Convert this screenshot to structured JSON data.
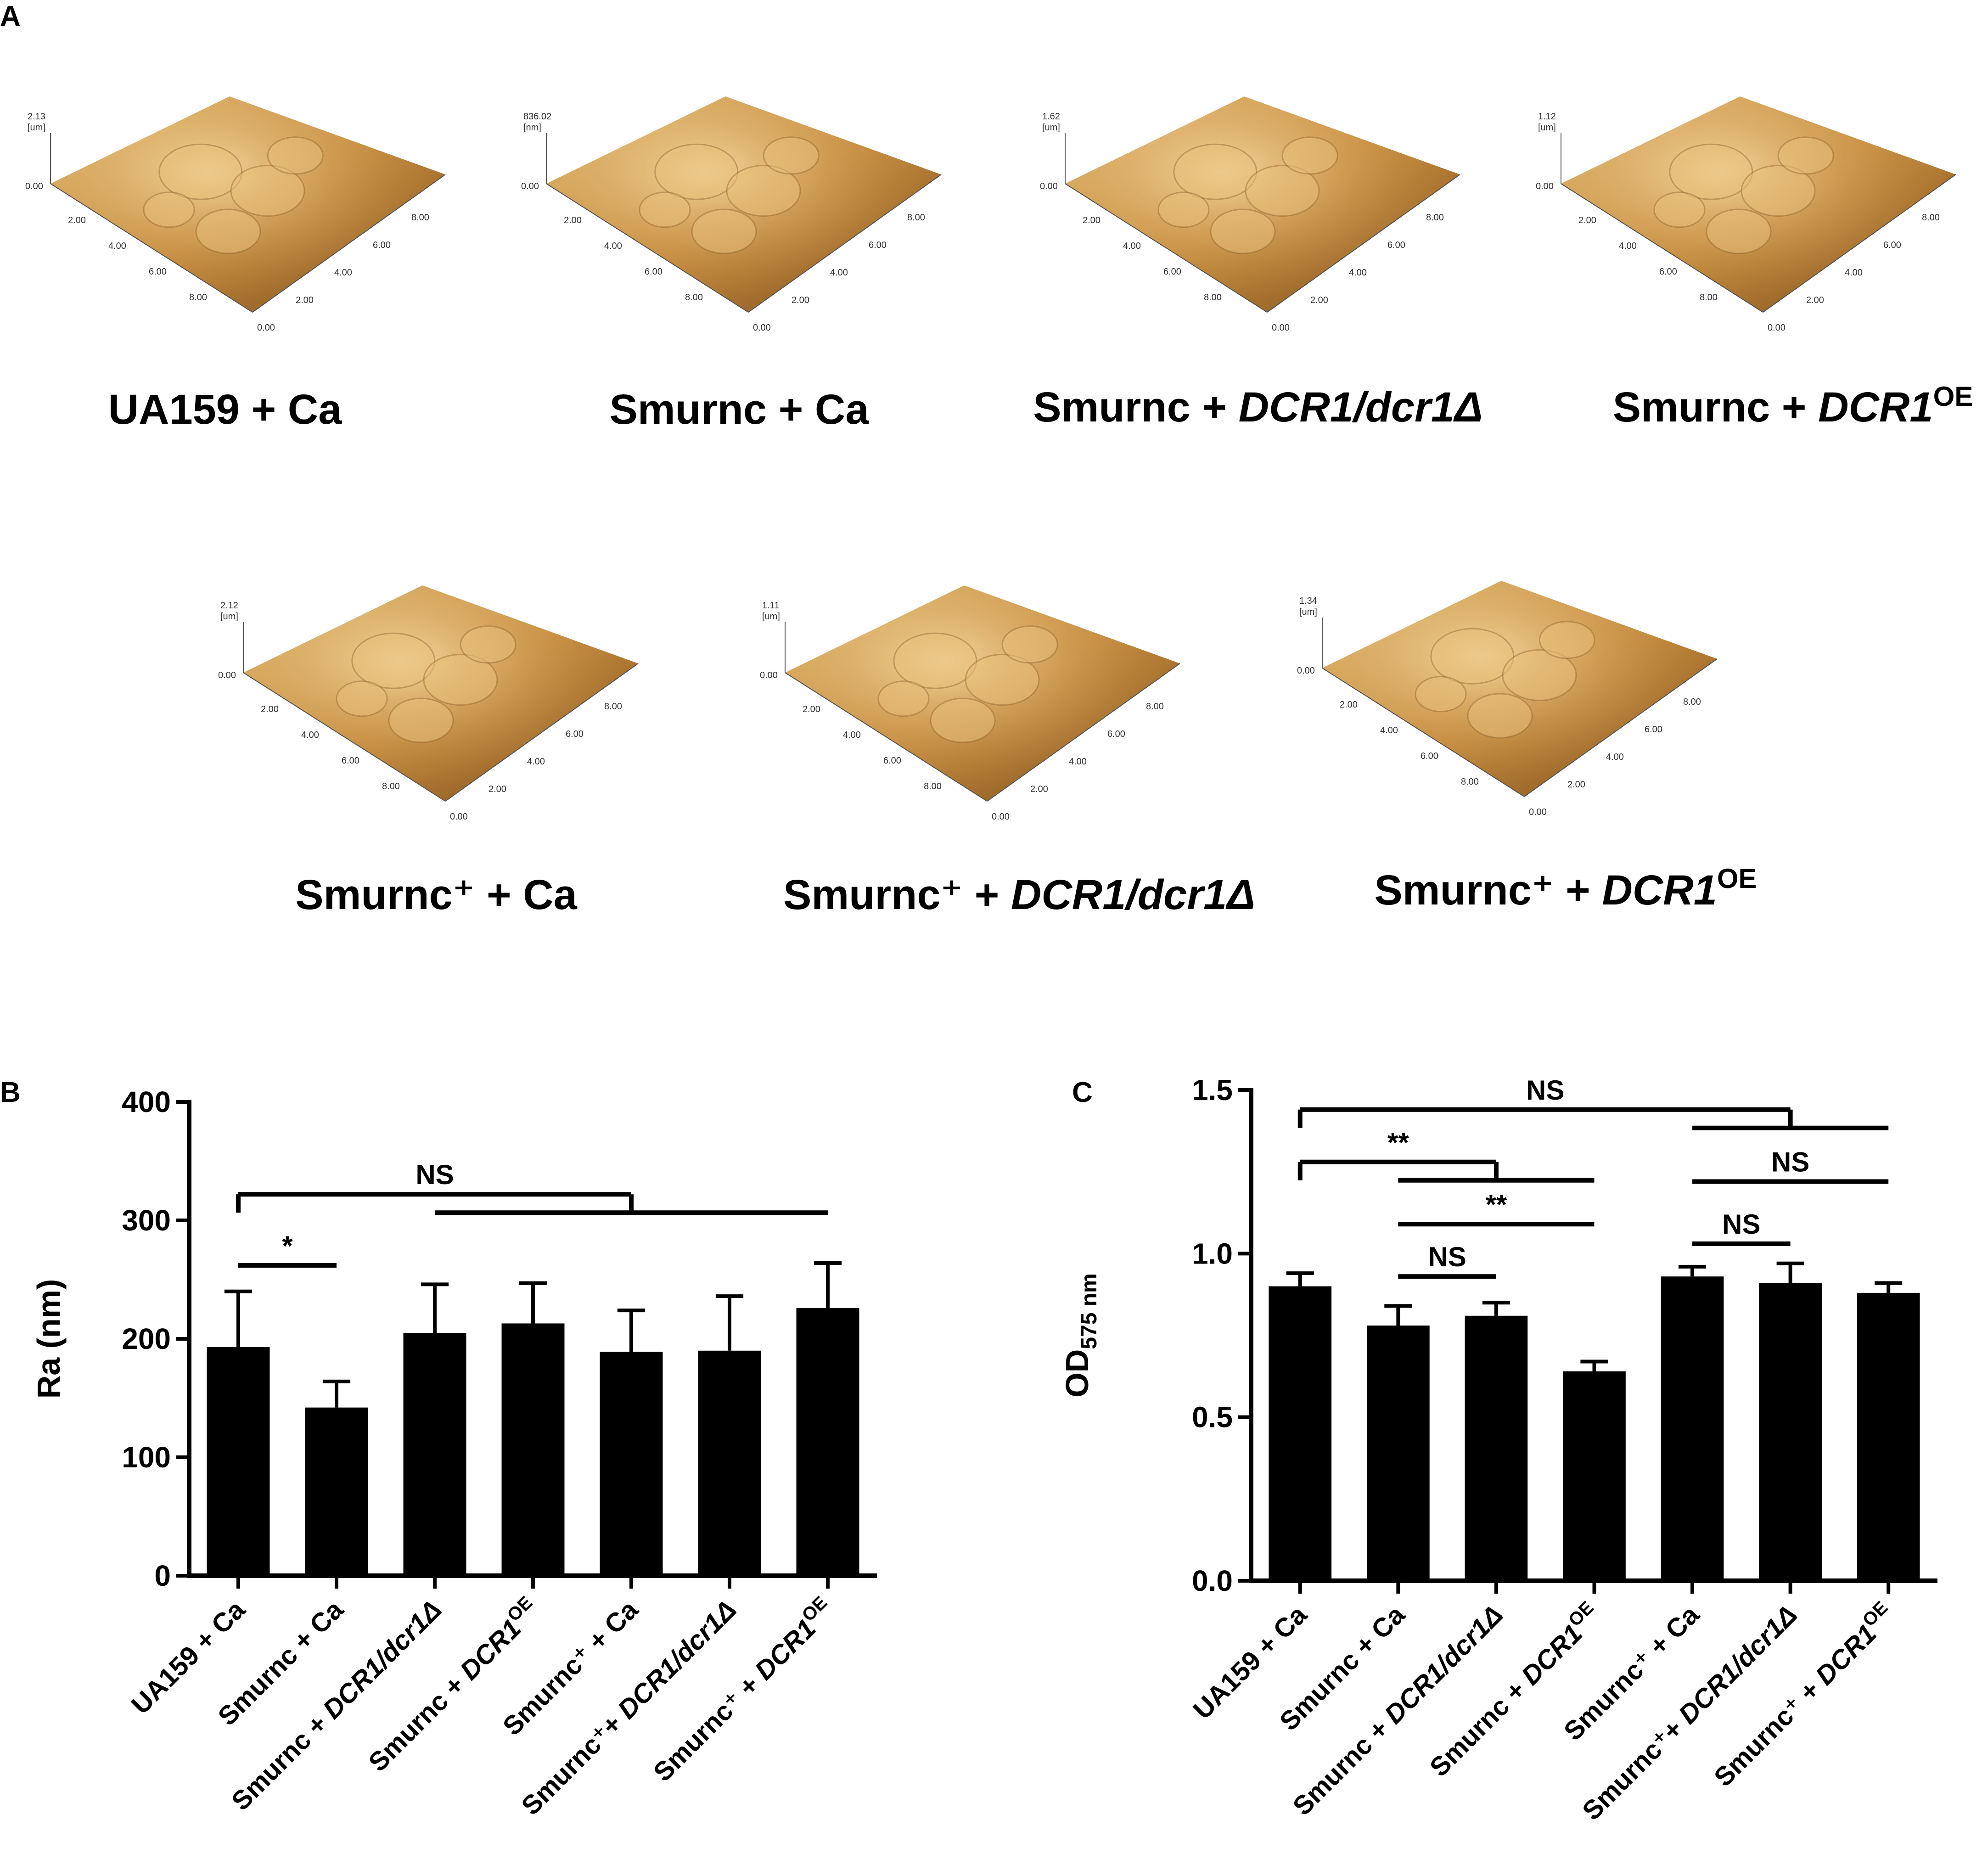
{
  "panelA": {
    "letter": "A",
    "surfaces": [
      {
        "label_main": "UA159  + Ca",
        "label_it": "",
        "label_sup": "",
        "z_value": "2.13",
        "z_unit": "[um]"
      },
      {
        "label_main": "Smurnc + Ca",
        "label_it": "",
        "label_sup": "",
        "z_value": "836.02",
        "z_unit": "[nm]"
      },
      {
        "label_main": "Smurnc + ",
        "label_it": "DCR1/dcr1Δ",
        "label_sup": "",
        "z_value": "1.62",
        "z_unit": "[um]"
      },
      {
        "label_main": "Smurnc + ",
        "label_it": "DCR1",
        "label_sup": "OE",
        "z_value": "1.12",
        "z_unit": "[um]"
      },
      {
        "label_main": "Smurnc⁺ + Ca",
        "label_it": "",
        "label_sup": "",
        "z_value": "2.12",
        "z_unit": "[um]"
      },
      {
        "label_main": "Smurnc⁺ + ",
        "label_it": "DCR1/dcr1Δ",
        "label_sup": "",
        "z_value": "1.11",
        "z_unit": "[um]"
      },
      {
        "label_main": "Smurnc⁺ + ",
        "label_it": "DCR1",
        "label_sup": "OE",
        "z_value": "1.34",
        "z_unit": "[um]"
      }
    ],
    "axis_ticks": [
      "0.00",
      "2.00",
      "4.00",
      "6.00",
      "8.00"
    ],
    "surface_colors": {
      "light": "#e8c07a",
      "mid": "#c58a3c",
      "dark": "#7a4d1c"
    }
  },
  "chart_data": [
    {
      "panel": "B",
      "type": "bar",
      "categories": [
        "UA159 + Ca",
        "Smurnc + Ca",
        "Smurnc + DCR1/dcr1Δ",
        "Smurnc + DCR1OE",
        "Smurnc+ + Ca",
        "Smurnc+ + DCR1/dcr1Δ",
        "Smurnc+ + DCR1OE"
      ],
      "tick_labels": [
        {
          "main": "UA159 + Ca",
          "it": "",
          "sup": ""
        },
        {
          "main": "Smurnc + Ca",
          "it": "",
          "sup": ""
        },
        {
          "main": "Smurnc + ",
          "it": "DCR1/dcr1Δ",
          "sup": ""
        },
        {
          "main": "Smurnc + ",
          "it": "DCR1",
          "sup": "OE"
        },
        {
          "main": "Smurnc⁺ + Ca",
          "it": "",
          "sup": ""
        },
        {
          "main": "Smurnc⁺+ ",
          "it": "DCR1/dcr1Δ",
          "sup": ""
        },
        {
          "main": "Smurnc⁺ + ",
          "it": "DCR1",
          "sup": "OE"
        }
      ],
      "values": [
        193,
        142,
        205,
        213,
        189,
        190,
        226
      ],
      "errors": [
        47,
        22,
        41,
        34,
        35,
        46,
        38
      ],
      "ylabel": "Ra (nm)",
      "ylim": [
        0,
        400
      ],
      "yticks": [
        0,
        100,
        200,
        300,
        400
      ],
      "annotations": [
        {
          "text": "*",
          "from": 0,
          "to": 1,
          "y": 262
        },
        {
          "text": "NS",
          "from": 0,
          "to": "group",
          "group": [
            2,
            6
          ],
          "y": 322
        }
      ],
      "color": "#000000"
    },
    {
      "panel": "C",
      "type": "bar",
      "categories": [
        "UA159 + Ca",
        "Smurnc + Ca",
        "Smurnc + DCR1/dcr1Δ",
        "Smurnc + DCR1OE",
        "Smurnc+ + Ca",
        "Smurnc+ + DCR1/dcr1Δ",
        "Smurnc+ + DCR1OE"
      ],
      "tick_labels": [
        {
          "main": "UA159 + Ca",
          "it": "",
          "sup": ""
        },
        {
          "main": "Smurnc + Ca",
          "it": "",
          "sup": ""
        },
        {
          "main": "Smurnc + ",
          "it": "DCR1/dcr1Δ",
          "sup": ""
        },
        {
          "main": "Smurnc + ",
          "it": "DCR1",
          "sup": "OE"
        },
        {
          "main": "Smurnc⁺ + Ca",
          "it": "",
          "sup": ""
        },
        {
          "main": "Smurnc⁺+ ",
          "it": "DCR1/dcr1Δ",
          "sup": ""
        },
        {
          "main": "Smurnc⁺ + ",
          "it": "DCR1",
          "sup": "OE"
        }
      ],
      "values": [
        0.9,
        0.78,
        0.81,
        0.64,
        0.93,
        0.91,
        0.88
      ],
      "errors": [
        0.04,
        0.06,
        0.04,
        0.03,
        0.03,
        0.06,
        0.03
      ],
      "ylabel_main": "OD",
      "ylabel_sub": "575 nm",
      "ylim": [
        0,
        1.5
      ],
      "yticks": [
        "0.0",
        "0.5",
        "1.0",
        "1.5"
      ],
      "annotations": [
        {
          "text": "NS",
          "from": 0,
          "to": "group",
          "group": [
            4,
            6
          ],
          "y": 1.44
        },
        {
          "text": "**",
          "from": 0,
          "to": "group",
          "group": [
            1,
            3
          ],
          "y": 1.28
        },
        {
          "text": "NS",
          "from": 4,
          "to": 6,
          "y": 1.22
        },
        {
          "text": "**",
          "from": 1,
          "to": 3,
          "y": 1.09
        },
        {
          "text": "NS",
          "from": 4,
          "to": 5,
          "y": 1.03
        },
        {
          "text": "NS",
          "from": 1,
          "to": 2,
          "y": 0.93
        }
      ],
      "color": "#000000"
    }
  ]
}
